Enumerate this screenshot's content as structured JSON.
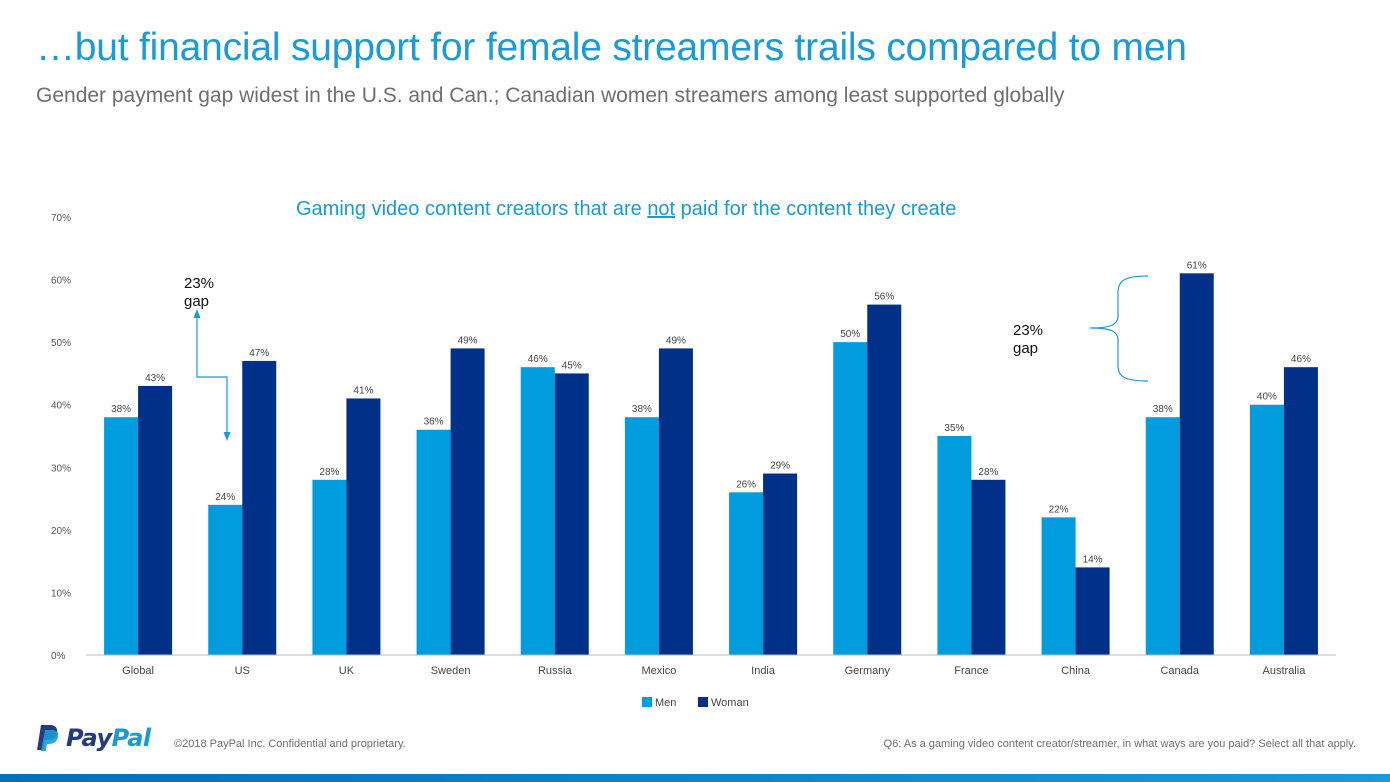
{
  "slide": {
    "title": "…but financial support for female streamers trails compared to men",
    "subtitle": "Gender payment gap widest in the U.S. and Can.; Canadian women streamers among least supported globally"
  },
  "chart_title": {
    "before": "Gaming video content creators that are ",
    "underlined": "not",
    "after": " paid for the content they create"
  },
  "annotations": {
    "us_gap": {
      "line1": "23%",
      "line2": "gap"
    },
    "canada_gap": {
      "line1": "23%",
      "line2": "gap"
    }
  },
  "chart_data": {
    "type": "bar",
    "title": "Gaming video content creators that are not paid for the content they create",
    "categories": [
      "Global",
      "US",
      "UK",
      "Sweden",
      "Russia",
      "Mexico",
      "India",
      "Germany",
      "France",
      "China",
      "Canada",
      "Australia"
    ],
    "series": [
      {
        "name": "Men",
        "color": "#009cde",
        "values": [
          38,
          24,
          28,
          36,
          46,
          38,
          26,
          50,
          35,
          22,
          38,
          40
        ]
      },
      {
        "name": "Woman",
        "color": "#003087",
        "values": [
          43,
          47,
          41,
          49,
          45,
          49,
          29,
          56,
          28,
          14,
          61,
          46
        ]
      }
    ],
    "ylim": [
      0,
      70
    ],
    "yticks": [
      0,
      10,
      20,
      30,
      40,
      50,
      60,
      70
    ],
    "ytick_suffix": "%",
    "legend_position": "bottom-center",
    "xlabel": "",
    "ylabel": ""
  },
  "footer": {
    "logo_pay": "Pay",
    "logo_pal": "Pal",
    "copyright": "©2018 PayPal Inc. Confidential and proprietary.",
    "question": "Q6: As a gaming video content creator/streamer, in what ways are you paid? Select all that apply."
  },
  "colors": {
    "title": "#1a9ad6",
    "subtitle": "#6d6e70",
    "men": "#009cde",
    "woman": "#003087"
  }
}
